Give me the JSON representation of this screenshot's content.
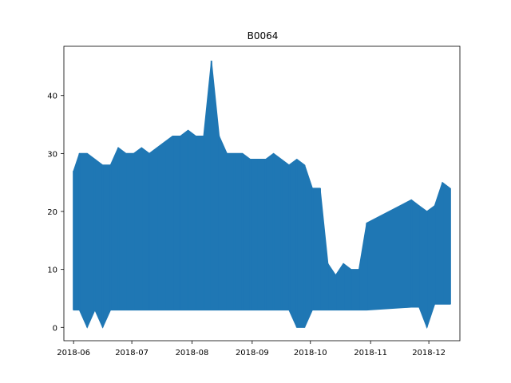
{
  "chart_data": {
    "type": "line",
    "title": "B0064",
    "xlabel": "",
    "ylabel": "",
    "x_ticks": [
      "2018-06",
      "2018-07",
      "2018-08",
      "2018-09",
      "2018-10",
      "2018-11",
      "2018-12"
    ],
    "y_ticks": [
      0,
      10,
      20,
      30,
      40
    ],
    "xlim": [
      "2018-05-27",
      "2018-12-17"
    ],
    "ylim": [
      -2.3,
      48.5
    ],
    "grid": false,
    "line_color": "#1f77b4",
    "series": [
      {
        "x": [
          "2018-06-01",
          "2018-06-04",
          "2018-06-08",
          "2018-06-12",
          "2018-06-16",
          "2018-06-20",
          "2018-06-24",
          "2018-06-28",
          "2018-07-02",
          "2018-07-06",
          "2018-07-10",
          "2018-07-14",
          "2018-07-18",
          "2018-07-22",
          "2018-07-26",
          "2018-07-30",
          "2018-08-03",
          "2018-08-07",
          "2018-08-11",
          "2018-08-15",
          "2018-08-19",
          "2018-08-23",
          "2018-08-27",
          "2018-08-31",
          "2018-09-04",
          "2018-09-08",
          "2018-09-12",
          "2018-09-16",
          "2018-09-20",
          "2018-09-24",
          "2018-09-28",
          "2018-10-02",
          "2018-10-06",
          "2018-10-10",
          "2018-10-14",
          "2018-10-18",
          "2018-10-22",
          "2018-10-26",
          "2018-10-30",
          "2018-11-22",
          "2018-11-26",
          "2018-11-30",
          "2018-12-04",
          "2018-12-08",
          "2018-12-12"
        ],
        "min": [
          3,
          3,
          0,
          3,
          0,
          3,
          3,
          3,
          3,
          3,
          3,
          3,
          3,
          3,
          3,
          3,
          3,
          3,
          3,
          3,
          3,
          3,
          3,
          3,
          3,
          3,
          3,
          3,
          3,
          0,
          0,
          3,
          3,
          3,
          3,
          3,
          3,
          3,
          3,
          3.5,
          3.5,
          0,
          4,
          4,
          4
        ],
        "max": [
          27,
          30,
          30,
          29,
          28,
          28,
          31,
          30,
          30,
          31,
          30,
          31,
          32,
          33,
          33,
          34,
          33,
          33,
          46,
          33,
          30,
          30,
          30,
          29,
          29,
          29,
          30,
          29,
          28,
          29,
          28,
          24,
          24,
          11,
          9,
          11,
          10,
          10,
          18,
          22,
          21,
          20,
          21,
          25,
          24
        ]
      }
    ]
  }
}
